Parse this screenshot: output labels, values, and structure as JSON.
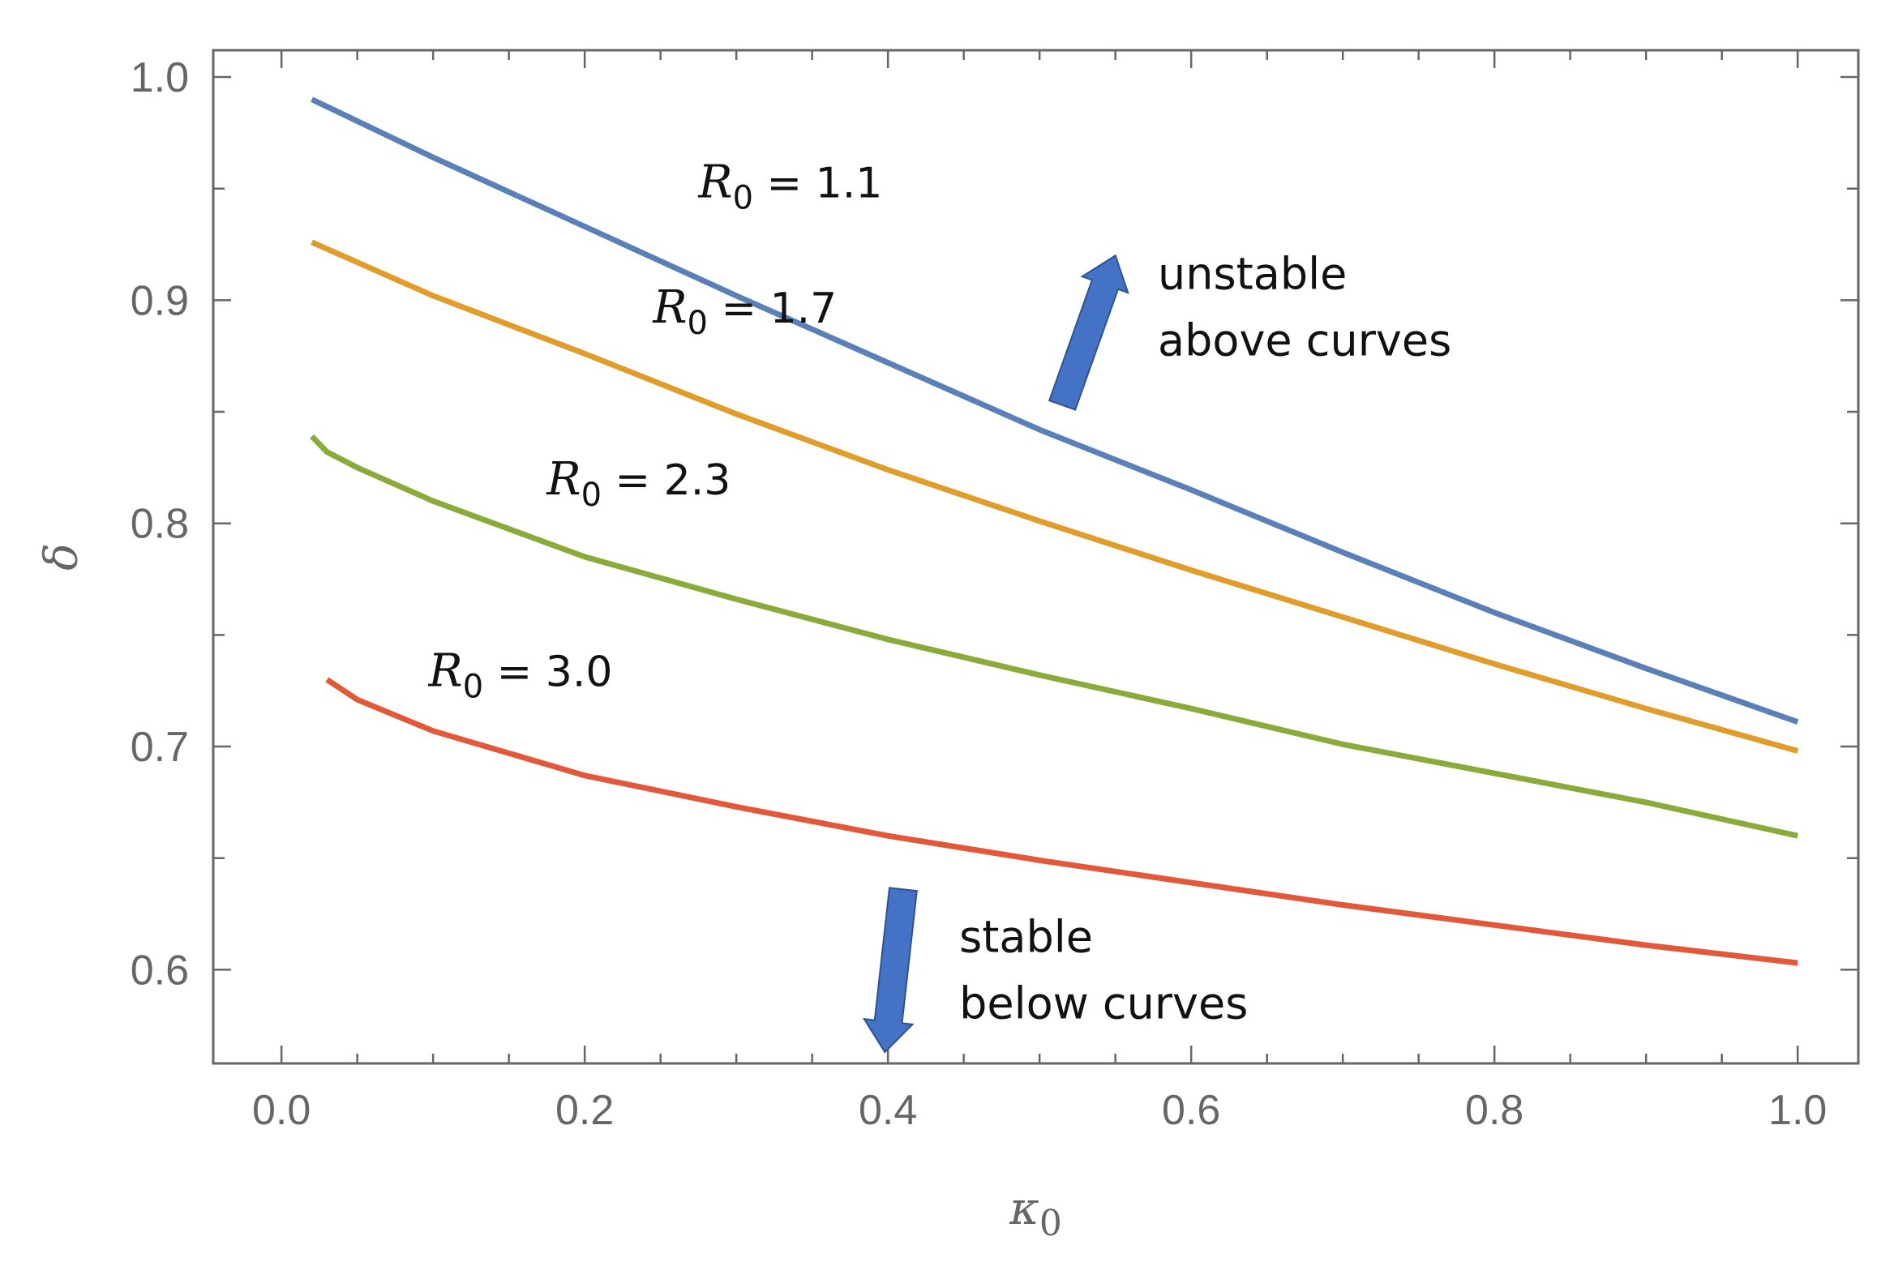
{
  "chart_data": {
    "type": "line",
    "title": "",
    "xlabel": "κ0",
    "ylabel": "δ",
    "xlim": [
      -0.045,
      1.04
    ],
    "ylim": [
      0.558,
      1.012
    ],
    "grid": false,
    "x_ticks": [
      "0.0",
      "0.2",
      "0.4",
      "0.6",
      "0.8",
      "1.0"
    ],
    "y_ticks": [
      "0.6",
      "0.7",
      "0.8",
      "0.9",
      "1.0"
    ],
    "x_tick_values": [
      0.0,
      0.2,
      0.4,
      0.6,
      0.8,
      1.0
    ],
    "y_tick_values": [
      0.6,
      0.7,
      0.8,
      0.9,
      1.0
    ],
    "series": [
      {
        "name": "R0 = 1.1",
        "label_prefix": "R",
        "label_sub": "0",
        "label_value": " = 1.1",
        "color": "#5b80b8",
        "x": [
          0.02,
          0.1,
          0.2,
          0.3,
          0.4,
          0.5,
          0.6,
          0.7,
          0.8,
          0.9,
          1.0
        ],
        "y": [
          0.99,
          0.964,
          0.933,
          0.902,
          0.872,
          0.842,
          0.815,
          0.787,
          0.76,
          0.735,
          0.711
        ],
        "label_at": [
          0.275,
          0.946
        ]
      },
      {
        "name": "R0 = 1.7",
        "label_prefix": "R",
        "label_sub": "0",
        "label_value": " = 1.7",
        "color": "#e09d2b",
        "x": [
          0.02,
          0.1,
          0.2,
          0.3,
          0.4,
          0.5,
          0.6,
          0.7,
          0.8,
          0.9,
          1.0
        ],
        "y": [
          0.926,
          0.902,
          0.876,
          0.849,
          0.824,
          0.801,
          0.779,
          0.758,
          0.737,
          0.717,
          0.698
        ],
        "label_at": [
          0.245,
          0.89
        ]
      },
      {
        "name": "R0 = 2.3",
        "label_prefix": "R",
        "label_sub": "0",
        "label_value": " = 2.3",
        "color": "#8aab3b",
        "x": [
          0.02,
          0.03,
          0.05,
          0.1,
          0.2,
          0.3,
          0.4,
          0.5,
          0.6,
          0.7,
          0.8,
          0.9,
          1.0
        ],
        "y": [
          0.839,
          0.832,
          0.825,
          0.81,
          0.785,
          0.766,
          0.748,
          0.732,
          0.717,
          0.701,
          0.688,
          0.675,
          0.66
        ],
        "label_at": [
          0.175,
          0.813
        ]
      },
      {
        "name": "R0 = 3.0",
        "label_prefix": "R",
        "label_sub": "0",
        "label_value": " = 3.0",
        "color": "#e2583a",
        "x": [
          0.03,
          0.05,
          0.1,
          0.2,
          0.3,
          0.4,
          0.5,
          0.6,
          0.7,
          0.8,
          0.9,
          1.0
        ],
        "y": [
          0.73,
          0.721,
          0.707,
          0.687,
          0.673,
          0.66,
          0.649,
          0.639,
          0.629,
          0.62,
          0.611,
          0.603
        ],
        "label_at": [
          0.097,
          0.727
        ]
      }
    ],
    "annotations": [
      {
        "name": "unstable-annotation",
        "lines": [
          "unstable",
          "above curves"
        ],
        "at": [
          0.578,
          0.905
        ],
        "arrow": "up",
        "arrow_from": [
          0.515,
          0.853
        ],
        "arrow_to": [
          0.55,
          0.92
        ],
        "color": "#4472c4"
      },
      {
        "name": "stable-annotation",
        "lines": [
          "stable",
          "below curves"
        ],
        "at": [
          0.447,
          0.608
        ],
        "arrow": "down",
        "arrow_from": [
          0.41,
          0.636
        ],
        "arrow_to": [
          0.398,
          0.563
        ],
        "color": "#4472c4"
      }
    ],
    "axis_color": "#666666"
  }
}
